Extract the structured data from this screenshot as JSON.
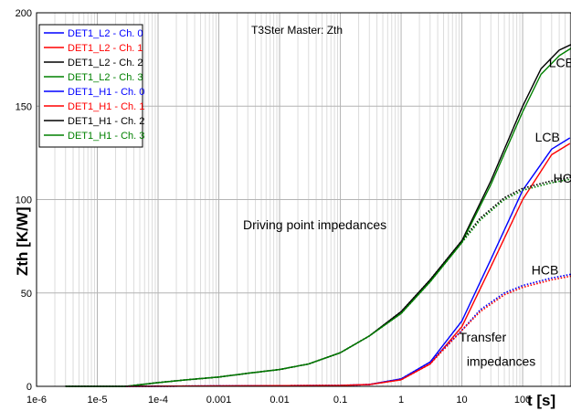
{
  "chart_data": {
    "type": "line",
    "title": "T3Ster Master: Zth",
    "xlabel": "t [s]",
    "ylabel": "Zth [K/W]",
    "x_scale": "log",
    "xlim": [
      1e-06,
      625
    ],
    "ylim": [
      0,
      200
    ],
    "grid": true,
    "legend_position": "top-left",
    "x_tick_labels": [
      "1e-6",
      "1e-5",
      "1e-4",
      "0.001",
      "0.01",
      "0.1",
      "1",
      "10",
      "100"
    ],
    "x_tick_values": [
      1e-06,
      1e-05,
      0.0001,
      0.001,
      0.01,
      0.1,
      1,
      10,
      100
    ],
    "y_tick_labels": [
      "0",
      "50",
      "100",
      "150",
      "200"
    ],
    "y_tick_values": [
      0,
      50,
      100,
      150,
      200
    ],
    "series": [
      {
        "name": "DET1_L2 - Ch. 0",
        "color": "#0000ff",
        "dash": "solid",
        "x": [
          3e-05,
          0.1,
          0.3,
          1,
          3,
          10,
          30,
          100,
          300,
          600
        ],
        "y": [
          0,
          0.5,
          1,
          4,
          13,
          35,
          68,
          105,
          127,
          133
        ]
      },
      {
        "name": "DET1_L2 - Ch. 1",
        "color": "#ff0000",
        "dash": "solid",
        "x": [
          3e-05,
          0.1,
          0.3,
          1,
          3,
          10,
          30,
          100,
          300,
          600
        ],
        "y": [
          0,
          0.5,
          1,
          3.5,
          12,
          32,
          64,
          100,
          124,
          130
        ]
      },
      {
        "name": "DET1_L2 - Ch. 2",
        "color": "#000000",
        "dash": "solid",
        "x": [
          3e-06,
          3e-05,
          0.0001,
          0.0003,
          0.001,
          0.003,
          0.01,
          0.03,
          0.1,
          0.3,
          1,
          3,
          10,
          30,
          100,
          200,
          400,
          625
        ],
        "y": [
          0,
          0,
          2,
          3.5,
          5,
          7,
          9,
          12,
          18,
          27,
          40,
          57,
          78,
          110,
          150,
          170,
          180,
          183
        ]
      },
      {
        "name": "DET1_L2 - Ch. 3",
        "color": "#008000",
        "dash": "solid",
        "x": [
          3e-06,
          3e-05,
          0.0001,
          0.0003,
          0.001,
          0.003,
          0.01,
          0.03,
          0.1,
          0.3,
          1,
          3,
          10,
          30,
          100,
          200,
          400,
          625
        ],
        "y": [
          0,
          0,
          2,
          3.5,
          5,
          7,
          9,
          12,
          18,
          27,
          39,
          56,
          77,
          108,
          147,
          167,
          177,
          181
        ]
      },
      {
        "name": "DET1_H1 - Ch. 0",
        "color": "#0000ff",
        "dash": "dotted",
        "x": [
          3e-05,
          0.1,
          0.3,
          1,
          3,
          10,
          20,
          50,
          100,
          300,
          625
        ],
        "y": [
          0,
          0.5,
          1,
          4,
          13,
          30,
          41,
          50,
          54,
          58,
          60
        ]
      },
      {
        "name": "DET1_H1 - Ch. 1",
        "color": "#ff0000",
        "dash": "dotted",
        "x": [
          3e-05,
          0.1,
          0.3,
          1,
          3,
          10,
          20,
          50,
          100,
          300,
          625
        ],
        "y": [
          0,
          0.5,
          1,
          3.5,
          12,
          30,
          40,
          49,
          53,
          57,
          59
        ]
      },
      {
        "name": "DET1_H1 - Ch. 2",
        "color": "#000000",
        "dash": "dotted",
        "x": [
          3e-06,
          3e-05,
          0.0001,
          0.0003,
          0.001,
          0.003,
          0.01,
          0.03,
          0.1,
          0.3,
          1,
          3,
          10,
          20,
          50,
          100,
          300,
          625
        ],
        "y": [
          0,
          0,
          2,
          3.5,
          5,
          7,
          9,
          12,
          18,
          27,
          40,
          57,
          78,
          90,
          101,
          106,
          110,
          112
        ]
      },
      {
        "name": "DET1_H1 - Ch. 3",
        "color": "#008000",
        "dash": "dotted",
        "x": [
          3e-06,
          3e-05,
          0.0001,
          0.0003,
          0.001,
          0.003,
          0.01,
          0.03,
          0.1,
          0.3,
          1,
          3,
          10,
          20,
          50,
          100,
          300,
          625
        ],
        "y": [
          0,
          0,
          2,
          3.5,
          5,
          7,
          9,
          12,
          18,
          27,
          39,
          56,
          77,
          89,
          100,
          105,
          109,
          111
        ]
      }
    ],
    "annotations": [
      {
        "text": "LCB",
        "x": 270,
        "y": 171
      },
      {
        "text": "LCB",
        "x": 160,
        "y": 131
      },
      {
        "text": "HCB",
        "x": 320,
        "y": 109
      },
      {
        "text": "HCB",
        "x": 140,
        "y": 60
      },
      {
        "text": "Driving point impedances",
        "x": 0.0025,
        "y": 84
      },
      {
        "text": "Transfer",
        "x": 9,
        "y": 24
      },
      {
        "text": "impedances",
        "x": 12,
        "y": 11
      }
    ]
  }
}
